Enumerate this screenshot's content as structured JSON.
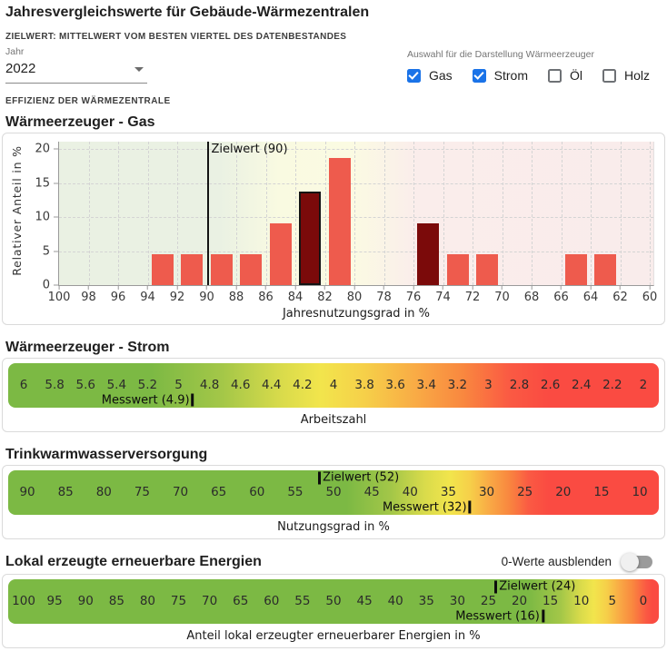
{
  "header": {
    "title": "Jahresvergleichswerte für Gebäude-Wärmezentralen",
    "subtitle": "ZIELWERT: MITTELWERT VOM BESTEN VIERTEL DES DATENBESTANDES",
    "year_label": "Jahr",
    "year_value": "2022",
    "selection_label": "Auswahl für die Darstellung Wärmeerzeuger",
    "generators": [
      {
        "label": "Gas",
        "checked": true
      },
      {
        "label": "Strom",
        "checked": true
      },
      {
        "label": "Öl",
        "checked": false
      },
      {
        "label": "Holz",
        "checked": false
      }
    ],
    "section_label": "EFFIZIENZ DER WÄRMEZENTRALE"
  },
  "renewables_toggle_label": "0-Werte ausblenden",
  "colors": {
    "checkbox_blue": "#1a73e8",
    "bar_salmon": "#ee5b4d",
    "bar_dark_red": "#7b0a0a",
    "scale_green": "#7cb944",
    "scale_yellow": "#f2e54c",
    "scale_orange": "#f9a945",
    "scale_red": "#fa4b42"
  },
  "chart_data": [
    {
      "id": "gas",
      "type": "bar",
      "title": "Wärmeerzeuger - Gas",
      "xlabel": "Jahresnutzungsgrad in %",
      "ylabel": "Relativer Anteil in %",
      "xlim": [
        100,
        60
      ],
      "ylim": [
        0,
        20
      ],
      "x_ticks": [
        100,
        98,
        96,
        94,
        92,
        90,
        88,
        86,
        84,
        82,
        80,
        78,
        76,
        74,
        72,
        70,
        68,
        66,
        64,
        62,
        60
      ],
      "y_ticks": [
        0,
        5,
        10,
        15,
        20
      ],
      "grid": true,
      "target_line": {
        "value": 90,
        "label": "Zielwert (90)"
      },
      "bar_width_units": 1.5,
      "bars": [
        {
          "x": 93,
          "y": 4.5,
          "style": "normal"
        },
        {
          "x": 91,
          "y": 4.5,
          "style": "normal"
        },
        {
          "x": 89,
          "y": 4.5,
          "style": "normal"
        },
        {
          "x": 87,
          "y": 4.5,
          "style": "normal"
        },
        {
          "x": 85,
          "y": 9.1,
          "style": "normal"
        },
        {
          "x": 83,
          "y": 13.7,
          "style": "dark-outlined"
        },
        {
          "x": 81,
          "y": 18.7,
          "style": "normal"
        },
        {
          "x": 75,
          "y": 9.1,
          "style": "dark"
        },
        {
          "x": 73,
          "y": 4.5,
          "style": "normal"
        },
        {
          "x": 71,
          "y": 4.5,
          "style": "normal"
        },
        {
          "x": 65,
          "y": 4.5,
          "style": "normal"
        },
        {
          "x": 63,
          "y": 4.5,
          "style": "normal"
        }
      ]
    },
    {
      "id": "strom",
      "type": "scale",
      "title": "Wärmeerzeuger - Strom",
      "xlabel": "Arbeitszahl",
      "ticks": [
        6,
        5.8,
        5.6,
        5.4,
        5.2,
        5,
        4.8,
        4.6,
        4.4,
        4.2,
        4,
        3.8,
        3.6,
        3.4,
        3.2,
        3,
        2.8,
        2.6,
        2.4,
        2.2,
        2
      ],
      "messwert": {
        "value": 4.9,
        "label": "Messwert (4.9)"
      }
    },
    {
      "id": "tww",
      "type": "scale",
      "title": "Trinkwarmwasserversorgung",
      "xlabel": "Nutzungsgrad in %",
      "ticks": [
        90,
        85,
        80,
        75,
        70,
        65,
        60,
        55,
        50,
        45,
        40,
        35,
        30,
        25,
        20,
        15,
        10
      ],
      "zielwert": {
        "value": 52,
        "label": "Zielwert (52)"
      },
      "messwert": {
        "value": 32,
        "label": "Messwert (32)"
      }
    },
    {
      "id": "renewables",
      "type": "scale",
      "title": "Lokal erzeugte erneuerbare Energien",
      "xlabel": "Anteil lokal erzeugter erneuerbarer Energien in %",
      "ticks": [
        100,
        95,
        90,
        85,
        80,
        75,
        70,
        65,
        60,
        55,
        50,
        45,
        40,
        35,
        30,
        25,
        20,
        15,
        10,
        5,
        0
      ],
      "zielwert": {
        "value": 24,
        "label": "Zielwert (24)"
      },
      "messwert": {
        "value": 16,
        "label": "Messwert (16)"
      }
    }
  ]
}
